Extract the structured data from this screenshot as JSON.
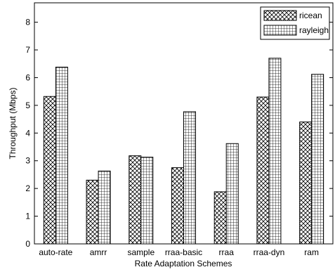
{
  "chart_data": {
    "type": "bar",
    "xlabel": "Rate Adaptation Schemes",
    "ylabel": "Throughput (Mbps)",
    "ylim": [
      0,
      8.7
    ],
    "yticks": [
      0,
      1,
      2,
      3,
      4,
      5,
      6,
      7,
      8
    ],
    "categories": [
      "auto-rate",
      "amrr",
      "sample",
      "rraa-basic",
      "rraa",
      "rraa-dyn",
      "ram"
    ],
    "series": [
      {
        "name": "ricean",
        "pattern": "crosshatch-diagonal",
        "values": [
          5.32,
          2.3,
          3.18,
          2.75,
          1.88,
          5.3,
          4.4
        ]
      },
      {
        "name": "rayleigh",
        "pattern": "grid-square",
        "values": [
          6.38,
          2.63,
          3.13,
          4.77,
          3.62,
          6.7,
          6.12
        ]
      }
    ],
    "legend_position": "top-right",
    "grid": false
  }
}
